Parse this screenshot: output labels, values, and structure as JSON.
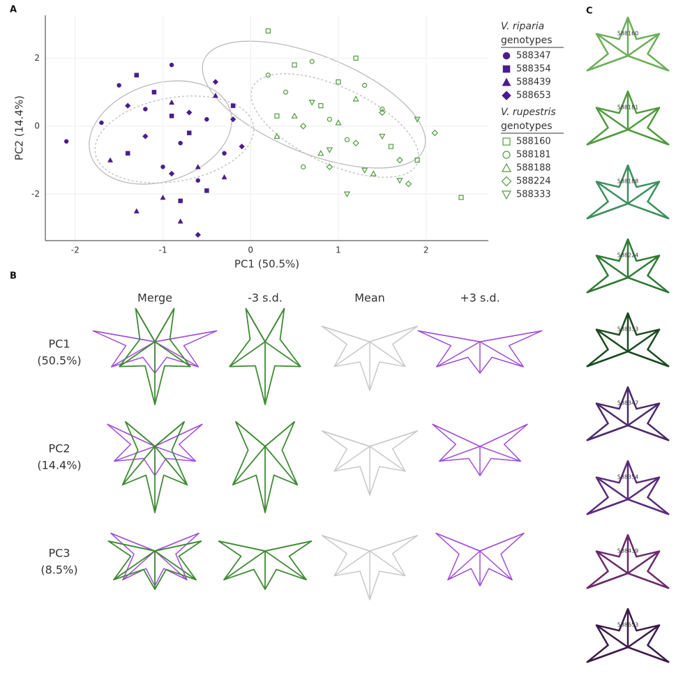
{
  "panel_labels": [
    "A",
    "B",
    "C"
  ],
  "chart_data": {
    "type": "scatter",
    "xlabel": "PC1 (50.5%)",
    "ylabel": "PC2 (14.4%)",
    "xlim": [
      -2.34,
      2.71
    ],
    "ylim": [
      -3.37,
      3.26
    ],
    "xticks": [
      -2,
      -1,
      0,
      1,
      2
    ],
    "yticks": [
      -2,
      0,
      2
    ],
    "grid": true,
    "legend_groups": [
      {
        "title": "V. riparia",
        "subtitle": "genotypes"
      },
      {
        "title": "V. rupestris",
        "subtitle": "genotypes"
      }
    ],
    "series": [
      {
        "name": "588347",
        "group": 0,
        "marker": "circle",
        "filled": true,
        "color": "#4b1d8c",
        "x": [
          -1.2,
          -0.8,
          -1.5,
          -0.5,
          -1.0,
          -0.3,
          -1.7,
          -0.9,
          -0.6,
          -2.1
        ],
        "y": [
          0.5,
          -0.5,
          1.2,
          0.2,
          -1.2,
          -0.8,
          0.1,
          1.8,
          -1.6,
          -0.45
        ]
      },
      {
        "name": "588354",
        "group": 0,
        "marker": "square",
        "filled": true,
        "color": "#4b1d8c",
        "x": [
          -1.1,
          -0.7,
          -1.4,
          -0.2,
          -0.9,
          -0.5,
          -1.3,
          -0.8
        ],
        "y": [
          1.0,
          -0.2,
          -0.8,
          0.6,
          0.3,
          -1.9,
          1.5,
          -2.2
        ]
      },
      {
        "name": "588439",
        "group": 0,
        "marker": "triangle",
        "filled": true,
        "color": "#4b1d8c",
        "x": [
          -1.3,
          -0.6,
          -0.9,
          -0.3,
          -1.0,
          -0.4,
          -0.8,
          -1.6
        ],
        "y": [
          -2.5,
          -1.2,
          0.7,
          -1.5,
          -2.1,
          0.9,
          -2.8,
          -1.0
        ]
      },
      {
        "name": "588653",
        "group": 0,
        "marker": "diamond",
        "filled": true,
        "color": "#4b1d8c",
        "x": [
          -0.4,
          -1.2,
          -0.7,
          -0.1,
          -1.4,
          -0.9,
          -0.2,
          -0.6
        ],
        "y": [
          1.3,
          -0.3,
          0.4,
          -0.6,
          0.6,
          -1.4,
          0.2,
          -3.2
        ]
      },
      {
        "name": "588160",
        "group": 1,
        "marker": "square",
        "filled": false,
        "color": "#4f9a3e",
        "x": [
          0.2,
          0.5,
          1.2,
          0.8,
          1.6,
          2.4,
          0.3,
          1.0,
          1.9
        ],
        "y": [
          2.8,
          1.8,
          2.0,
          0.6,
          -0.6,
          -2.1,
          0.3,
          1.3,
          -1.0
        ]
      },
      {
        "name": "588181",
        "group": 1,
        "marker": "circle",
        "filled": false,
        "color": "#4f9a3e",
        "x": [
          0.4,
          0.9,
          1.1,
          0.2,
          0.7,
          1.5,
          0.6,
          1.3
        ],
        "y": [
          1.0,
          0.2,
          -0.4,
          1.5,
          1.9,
          0.5,
          -1.2,
          1.2
        ]
      },
      {
        "name": "588188",
        "group": 1,
        "marker": "triangle",
        "filled": false,
        "color": "#4f9a3e",
        "x": [
          0.5,
          0.8,
          1.2,
          0.3,
          1.0,
          1.4
        ],
        "y": [
          0.3,
          -0.8,
          0.8,
          -0.3,
          0.1,
          -1.4
        ]
      },
      {
        "name": "588224",
        "group": 1,
        "marker": "diamond",
        "filled": false,
        "color": "#4f9a3e",
        "x": [
          1.2,
          1.7,
          2.1,
          0.9,
          1.5,
          0.6,
          1.8
        ],
        "y": [
          -0.5,
          -1.0,
          -0.2,
          -1.2,
          0.4,
          0.0,
          -1.7
        ]
      },
      {
        "name": "588333",
        "group": 1,
        "marker": "triangle-down",
        "filled": false,
        "color": "#4f9a3e",
        "x": [
          1.3,
          1.7,
          0.9,
          1.9,
          1.1,
          0.7,
          1.5
        ],
        "y": [
          -1.3,
          -1.6,
          -0.7,
          0.2,
          -2.0,
          0.7,
          -0.3
        ]
      }
    ]
  },
  "panel_b": {
    "columns": [
      "Merge",
      "-3 s.d.",
      "Mean",
      "+3 s.d."
    ],
    "rows": [
      {
        "label": "PC1",
        "sub": "(50.5%)"
      },
      {
        "label": "PC2",
        "sub": "(14.4%)"
      },
      {
        "label": "PC3",
        "sub": "(8.5%)"
      }
    ]
  },
  "panel_c": {
    "labels": [
      "588160",
      "588181",
      "588188",
      "588224",
      "588333",
      "588347",
      "588354",
      "588439",
      "588653"
    ]
  }
}
